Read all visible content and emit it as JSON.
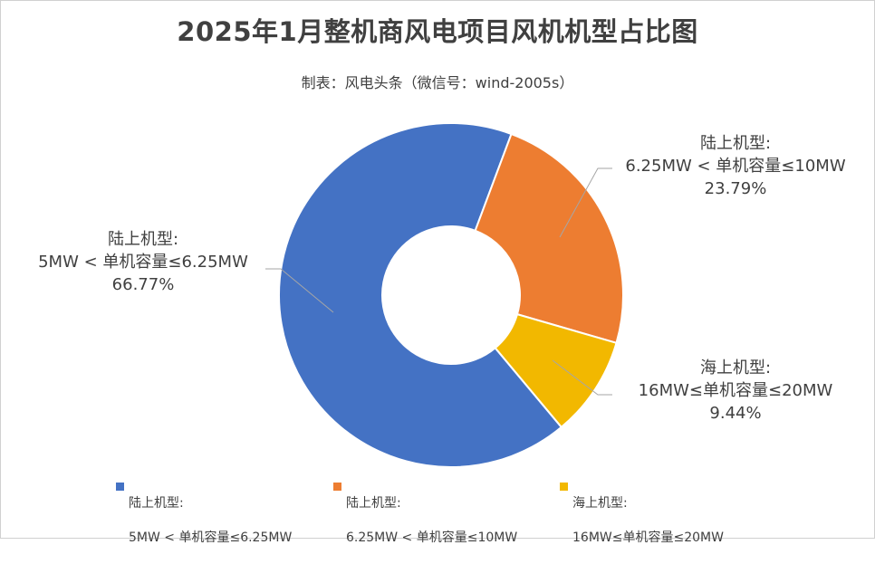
{
  "chart_data": {
    "type": "pie",
    "donut": true,
    "title": "2025年1月整机商风电项目风机机型占比图",
    "subtitle": "制表：风电头条（微信号：wind-2005s）",
    "legend_position": "bottom",
    "slices": [
      {
        "category": "陆上机型:",
        "range": "5MW < 单机容量≤6.25MW",
        "value": 66.77,
        "label": "66.77%",
        "color": "#4472C4"
      },
      {
        "category": "陆上机型:",
        "range": "6.25MW < 单机容量≤10MW",
        "value": 23.79,
        "label": "23.79%",
        "color": "#ED7D31"
      },
      {
        "category": "海上机型:",
        "range": "16MW≤单机容量≤20MW",
        "value": 9.44,
        "label": "9.44%",
        "color": "#F2B800"
      }
    ]
  }
}
